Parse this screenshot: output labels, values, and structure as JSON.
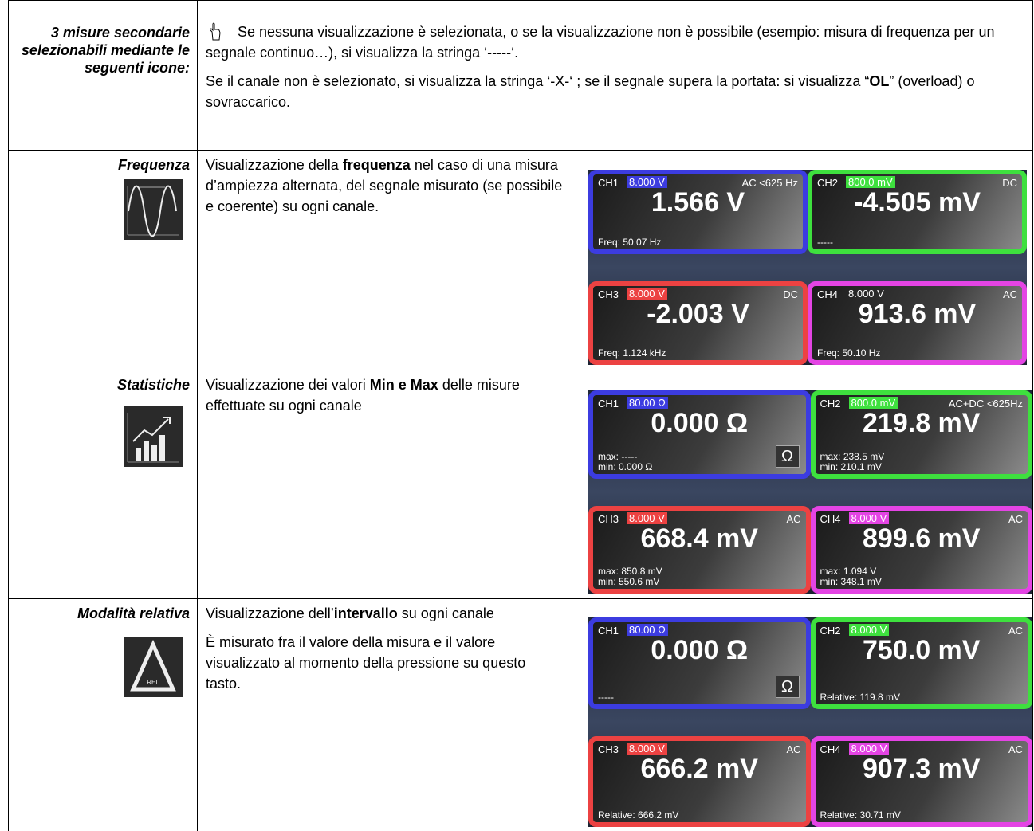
{
  "header": {
    "label": "3 misure secondarie selezionabili mediante le seguenti icone:",
    "paragraphs": [
      [
        {
          "text": "Se nessuna visualizzazione è selezionata, o se la visualizzazione non è possibile (esempio: misura di frequenza per un segnale continuo…), si visualizza la stringa ‘-----‘."
        }
      ],
      [
        {
          "text": "Se il canale non è selezionato, si visualizza la stringa ‘-X-‘ ; se il segnale supera la portata: si visualizza “"
        },
        {
          "text": "OL",
          "bold": true
        },
        {
          "text": "” (overload) o sovraccarico."
        }
      ]
    ]
  },
  "rows": [
    {
      "label": "Frequenza",
      "description": [
        [
          {
            "text": "Visualizzazione della "
          },
          {
            "text": "frequenza",
            "bold": true
          },
          {
            "text": " nel caso di una misura d’ampiezza alternata, del segnale misurato (se possibile e coerente) su ogni canale."
          }
        ]
      ],
      "screen": [
        {
          "name": "CH1",
          "color": "#3c3ce0",
          "range": "8.000 V",
          "badge": true,
          "mode": "AC <625 Hz",
          "value": "1.566 V",
          "notes": [
            "Freq: 50.07 Hz"
          ]
        },
        {
          "name": "CH2",
          "color": "#3ee03e",
          "range": "800.0 mV",
          "badge": true,
          "mode": "DC",
          "value": "-4.505 mV",
          "notes": [
            "-----"
          ]
        },
        {
          "name": "CH3",
          "color": "#ec4242",
          "range": "8.000 V",
          "badge": true,
          "mode": "DC",
          "value": "-2.003 V",
          "notes": [
            "Freq: 1.124 kHz"
          ]
        },
        {
          "name": "CH4",
          "color": "#e444e4",
          "range": "8.000 V",
          "badge": false,
          "mode": "AC",
          "value": "913.6 mV",
          "notes": [
            "Freq: 50.10 Hz"
          ]
        }
      ]
    },
    {
      "label": "Statistiche",
      "description": [
        [
          {
            "text": "Visualizzazione dei valori "
          },
          {
            "text": "Min e Max",
            "bold": true
          },
          {
            "text": " delle misure effettuate su ogni canale"
          }
        ]
      ],
      "screen": [
        {
          "name": "CH1",
          "color": "#3c3ce0",
          "range": "80.00 Ω",
          "badge": true,
          "value": "0.000 Ω",
          "notes": [
            "max: -----",
            "min: 0.000 Ω"
          ],
          "button": "Ω"
        },
        {
          "name": "CH2",
          "color": "#3ee03e",
          "range": "800.0 mV",
          "badge": true,
          "mode": "AC+DC <625Hz",
          "value": "219.8 mV",
          "notes": [
            "max: 238.5 mV",
            "min: 210.1 mV"
          ]
        },
        {
          "name": "CH3",
          "color": "#ec4242",
          "range": "8.000 V",
          "badge": true,
          "mode": "AC",
          "value": "668.4 mV",
          "notes": [
            "max: 850.8 mV",
            "min: 550.6 mV"
          ]
        },
        {
          "name": "CH4",
          "color": "#e444e4",
          "range": "8.000 V",
          "badge": true,
          "mode": "AC",
          "value": "899.6 mV",
          "notes": [
            "max: 1.094 V",
            "min: 348.1 mV"
          ]
        }
      ]
    },
    {
      "label": "Modalità relativa",
      "icon_text": "REL",
      "description": [
        [
          {
            "text": "Visualizzazione dell’"
          },
          {
            "text": "intervallo",
            "bold": true
          },
          {
            "text": " su ogni canale"
          }
        ],
        [
          {
            "text": "È misurato fra il valore della misura e il valore visualizzato al momento della pressione su questo tasto."
          }
        ]
      ],
      "screen": [
        {
          "name": "CH1",
          "color": "#3c3ce0",
          "range": "80.00 Ω",
          "badge": true,
          "value": "0.000 Ω",
          "notes": [
            "-----"
          ],
          "button": "Ω"
        },
        {
          "name": "CH2",
          "color": "#3ee03e",
          "range": "8.000 V",
          "badge": true,
          "mode": "AC",
          "value": "750.0 mV",
          "notes": [
            "Relative: 119.8 mV"
          ]
        },
        {
          "name": "CH3",
          "color": "#ec4242",
          "range": "8.000 V",
          "badge": true,
          "mode": "AC",
          "value": "666.2 mV",
          "notes": [
            "Relative: 666.2 mV"
          ]
        },
        {
          "name": "CH4",
          "color": "#e444e4",
          "range": "8.000 V",
          "badge": true,
          "mode": "AC",
          "value": "907.3 mV",
          "notes": [
            "Relative: 30.71 mV"
          ]
        }
      ]
    }
  ]
}
